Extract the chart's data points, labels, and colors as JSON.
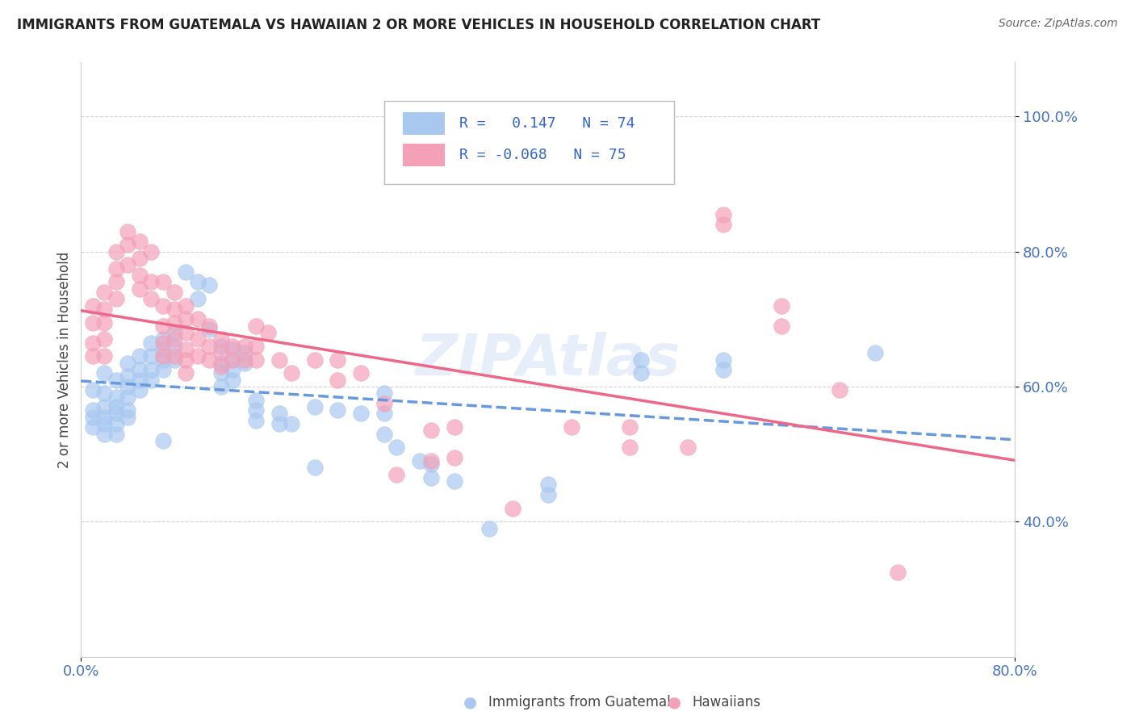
{
  "title": "IMMIGRANTS FROM GUATEMALA VS HAWAIIAN 2 OR MORE VEHICLES IN HOUSEHOLD CORRELATION CHART",
  "source": "Source: ZipAtlas.com",
  "ylabel_label": "2 or more Vehicles in Household",
  "xlim": [
    0.0,
    0.8
  ],
  "ylim": [
    0.2,
    1.08
  ],
  "blue_color": "#A8C8F0",
  "pink_color": "#F4A0B8",
  "blue_line_color": "#6699DD",
  "pink_line_color": "#EE6688",
  "watermark": "ZIPAtlas",
  "blue_scatter": [
    [
      0.01,
      0.595
    ],
    [
      0.01,
      0.565
    ],
    [
      0.01,
      0.555
    ],
    [
      0.01,
      0.54
    ],
    [
      0.02,
      0.62
    ],
    [
      0.02,
      0.59
    ],
    [
      0.02,
      0.57
    ],
    [
      0.02,
      0.555
    ],
    [
      0.02,
      0.545
    ],
    [
      0.02,
      0.53
    ],
    [
      0.03,
      0.61
    ],
    [
      0.03,
      0.585
    ],
    [
      0.03,
      0.57
    ],
    [
      0.03,
      0.56
    ],
    [
      0.03,
      0.545
    ],
    [
      0.03,
      0.53
    ],
    [
      0.04,
      0.635
    ],
    [
      0.04,
      0.615
    ],
    [
      0.04,
      0.6
    ],
    [
      0.04,
      0.585
    ],
    [
      0.04,
      0.565
    ],
    [
      0.04,
      0.555
    ],
    [
      0.05,
      0.645
    ],
    [
      0.05,
      0.625
    ],
    [
      0.05,
      0.61
    ],
    [
      0.05,
      0.595
    ],
    [
      0.06,
      0.665
    ],
    [
      0.06,
      0.645
    ],
    [
      0.06,
      0.625
    ],
    [
      0.06,
      0.61
    ],
    [
      0.07,
      0.67
    ],
    [
      0.07,
      0.655
    ],
    [
      0.07,
      0.64
    ],
    [
      0.07,
      0.625
    ],
    [
      0.07,
      0.52
    ],
    [
      0.08,
      0.68
    ],
    [
      0.08,
      0.66
    ],
    [
      0.08,
      0.64
    ],
    [
      0.09,
      0.77
    ],
    [
      0.1,
      0.755
    ],
    [
      0.1,
      0.73
    ],
    [
      0.11,
      0.75
    ],
    [
      0.11,
      0.685
    ],
    [
      0.12,
      0.66
    ],
    [
      0.12,
      0.635
    ],
    [
      0.12,
      0.62
    ],
    [
      0.12,
      0.6
    ],
    [
      0.13,
      0.655
    ],
    [
      0.13,
      0.64
    ],
    [
      0.13,
      0.625
    ],
    [
      0.13,
      0.61
    ],
    [
      0.14,
      0.65
    ],
    [
      0.14,
      0.635
    ],
    [
      0.15,
      0.58
    ],
    [
      0.15,
      0.565
    ],
    [
      0.15,
      0.55
    ],
    [
      0.17,
      0.56
    ],
    [
      0.17,
      0.545
    ],
    [
      0.18,
      0.545
    ],
    [
      0.2,
      0.57
    ],
    [
      0.2,
      0.48
    ],
    [
      0.22,
      0.565
    ],
    [
      0.24,
      0.56
    ],
    [
      0.26,
      0.59
    ],
    [
      0.26,
      0.56
    ],
    [
      0.26,
      0.53
    ],
    [
      0.27,
      0.51
    ],
    [
      0.29,
      0.49
    ],
    [
      0.3,
      0.485
    ],
    [
      0.3,
      0.465
    ],
    [
      0.32,
      0.46
    ],
    [
      0.35,
      0.39
    ],
    [
      0.4,
      0.455
    ],
    [
      0.4,
      0.44
    ],
    [
      0.48,
      0.64
    ],
    [
      0.48,
      0.62
    ],
    [
      0.55,
      0.64
    ],
    [
      0.55,
      0.625
    ],
    [
      0.68,
      0.65
    ]
  ],
  "pink_scatter": [
    [
      0.01,
      0.72
    ],
    [
      0.01,
      0.695
    ],
    [
      0.01,
      0.665
    ],
    [
      0.01,
      0.645
    ],
    [
      0.02,
      0.74
    ],
    [
      0.02,
      0.715
    ],
    [
      0.02,
      0.695
    ],
    [
      0.02,
      0.67
    ],
    [
      0.02,
      0.645
    ],
    [
      0.03,
      0.8
    ],
    [
      0.03,
      0.775
    ],
    [
      0.03,
      0.755
    ],
    [
      0.03,
      0.73
    ],
    [
      0.04,
      0.83
    ],
    [
      0.04,
      0.81
    ],
    [
      0.04,
      0.78
    ],
    [
      0.05,
      0.815
    ],
    [
      0.05,
      0.79
    ],
    [
      0.05,
      0.765
    ],
    [
      0.05,
      0.745
    ],
    [
      0.06,
      0.8
    ],
    [
      0.06,
      0.755
    ],
    [
      0.06,
      0.73
    ],
    [
      0.07,
      0.755
    ],
    [
      0.07,
      0.72
    ],
    [
      0.07,
      0.69
    ],
    [
      0.07,
      0.665
    ],
    [
      0.07,
      0.645
    ],
    [
      0.08,
      0.74
    ],
    [
      0.08,
      0.715
    ],
    [
      0.08,
      0.695
    ],
    [
      0.08,
      0.67
    ],
    [
      0.08,
      0.645
    ],
    [
      0.09,
      0.72
    ],
    [
      0.09,
      0.7
    ],
    [
      0.09,
      0.68
    ],
    [
      0.09,
      0.655
    ],
    [
      0.09,
      0.64
    ],
    [
      0.09,
      0.62
    ],
    [
      0.1,
      0.7
    ],
    [
      0.1,
      0.67
    ],
    [
      0.1,
      0.645
    ],
    [
      0.11,
      0.69
    ],
    [
      0.11,
      0.66
    ],
    [
      0.11,
      0.64
    ],
    [
      0.12,
      0.67
    ],
    [
      0.12,
      0.65
    ],
    [
      0.12,
      0.63
    ],
    [
      0.13,
      0.66
    ],
    [
      0.13,
      0.64
    ],
    [
      0.14,
      0.66
    ],
    [
      0.14,
      0.64
    ],
    [
      0.15,
      0.69
    ],
    [
      0.15,
      0.66
    ],
    [
      0.15,
      0.64
    ],
    [
      0.16,
      0.68
    ],
    [
      0.17,
      0.64
    ],
    [
      0.18,
      0.62
    ],
    [
      0.2,
      0.64
    ],
    [
      0.22,
      0.64
    ],
    [
      0.22,
      0.61
    ],
    [
      0.24,
      0.62
    ],
    [
      0.26,
      0.575
    ],
    [
      0.27,
      0.47
    ],
    [
      0.3,
      0.535
    ],
    [
      0.3,
      0.49
    ],
    [
      0.32,
      0.54
    ],
    [
      0.32,
      0.495
    ],
    [
      0.37,
      0.42
    ],
    [
      0.42,
      0.54
    ],
    [
      0.47,
      0.54
    ],
    [
      0.47,
      0.51
    ],
    [
      0.52,
      0.51
    ],
    [
      0.55,
      0.855
    ],
    [
      0.55,
      0.84
    ],
    [
      0.6,
      0.72
    ],
    [
      0.6,
      0.69
    ],
    [
      0.65,
      0.595
    ],
    [
      0.7,
      0.325
    ]
  ]
}
